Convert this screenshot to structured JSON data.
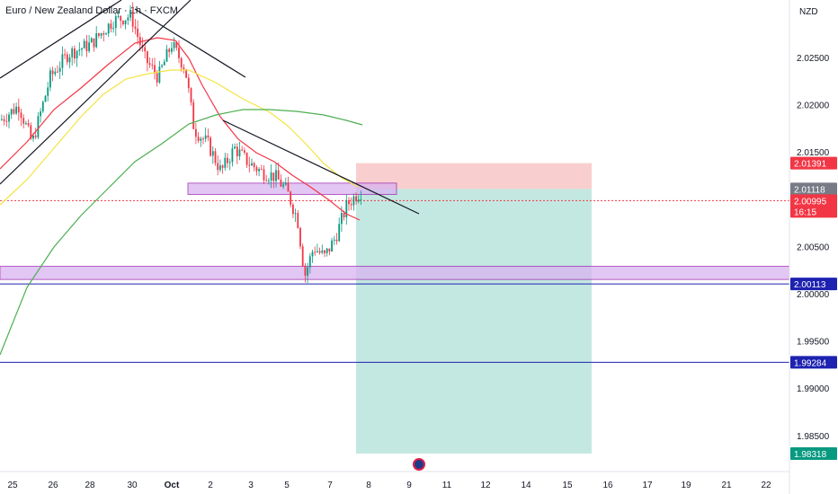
{
  "header": {
    "title": "Euro / New Zealand Dollar · 1h · FXCM",
    "currency": "NZD"
  },
  "colors": {
    "up": "#089981",
    "down": "#f23645",
    "ma_fast": "#f23645",
    "ma_mid": "#f5e342",
    "ma_slow": "#4caf50",
    "zone": "#d9b3f0",
    "zone_border": "#9c27b0",
    "level_line": "#1e22b0",
    "stop_zone": "#f7c5c5",
    "target_zone": "#b9e4dc",
    "current_price": "#f23645",
    "entry_badge": "#787b86",
    "target_badge": "#089981"
  },
  "chart_data": {
    "type": "candlestick",
    "symbol": "EURNZD",
    "interval": "1h",
    "y_axis_ticks": [
      "2.02500",
      "2.02000",
      "2.01500",
      "2.00500",
      "2.00000",
      "1.99500",
      "1.99000",
      "1.98500"
    ],
    "x_axis_ticks": [
      "25",
      "26",
      "28",
      "30",
      "Oct",
      "2",
      "3",
      "5",
      "7",
      "8",
      "9",
      "11",
      "12",
      "14",
      "15",
      "16",
      "17",
      "19",
      "21",
      "22"
    ],
    "ylim": [
      1.981,
      2.031
    ],
    "price_badges": [
      {
        "name": "stop_loss",
        "value": "2.01391"
      },
      {
        "name": "entry",
        "value": "2.01118"
      },
      {
        "name": "current_price",
        "value": "2.00995",
        "countdown": "16:15"
      },
      {
        "name": "support_level",
        "value": "2.00113"
      },
      {
        "name": "level_2",
        "value": "1.99284"
      },
      {
        "name": "take_profit",
        "value": "1.98318"
      }
    ],
    "position": {
      "type": "short",
      "entry": 2.01118,
      "stop": 2.01391,
      "target": 1.98318,
      "start_x": "7",
      "end_x": "15"
    },
    "horizontal_lines": [
      2.00113,
      1.99284
    ],
    "zones": [
      {
        "name": "resistance_zone",
        "from": 2.0106,
        "to": 2.0118
      },
      {
        "name": "support_zone",
        "from": 2.0016,
        "to": 2.003
      }
    ]
  }
}
